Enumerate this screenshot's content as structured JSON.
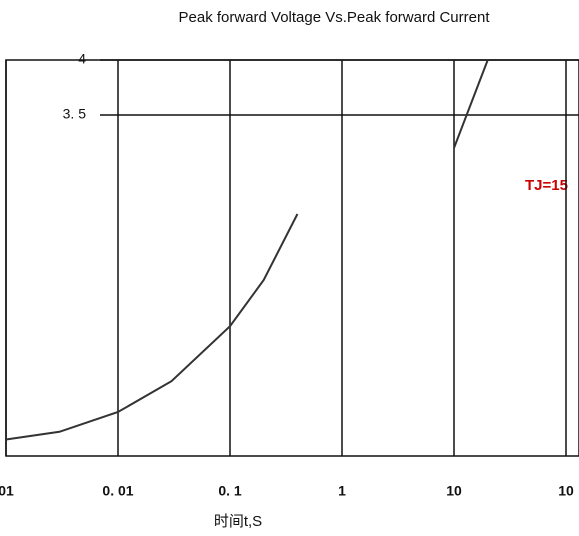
{
  "chart_data": {
    "type": "line",
    "title": "Peak forward Voltage Vs.Peak forward Current",
    "x_label": "时间t,S",
    "annotations": [
      "TJ=15"
    ],
    "log_x": true,
    "grid": true,
    "xlim": [
      0.001,
      100
    ],
    "xticks": [
      {
        "value": 0.001,
        "label": "01"
      },
      {
        "value": 0.01,
        "label": "0. 01"
      },
      {
        "value": 0.1,
        "label": "0. 1"
      },
      1,
      10,
      {
        "value": 100,
        "label": "10"
      }
    ],
    "ylim": [
      0.4,
      4
    ],
    "yticks": [
      4,
      {
        "value": 3.5,
        "label": "3. 5"
      }
    ],
    "series": [
      {
        "color": "#333333",
        "x": [
          0.001,
          0.003,
          0.01,
          0.03,
          0.1,
          0.2,
          0.4
        ],
        "values": [
          0.55,
          0.62,
          0.8,
          1.08,
          1.58,
          2.0,
          2.6
        ]
      },
      {
        "color": "#333333",
        "x": [
          10,
          20
        ],
        "values": [
          3.2,
          4
        ]
      }
    ]
  }
}
